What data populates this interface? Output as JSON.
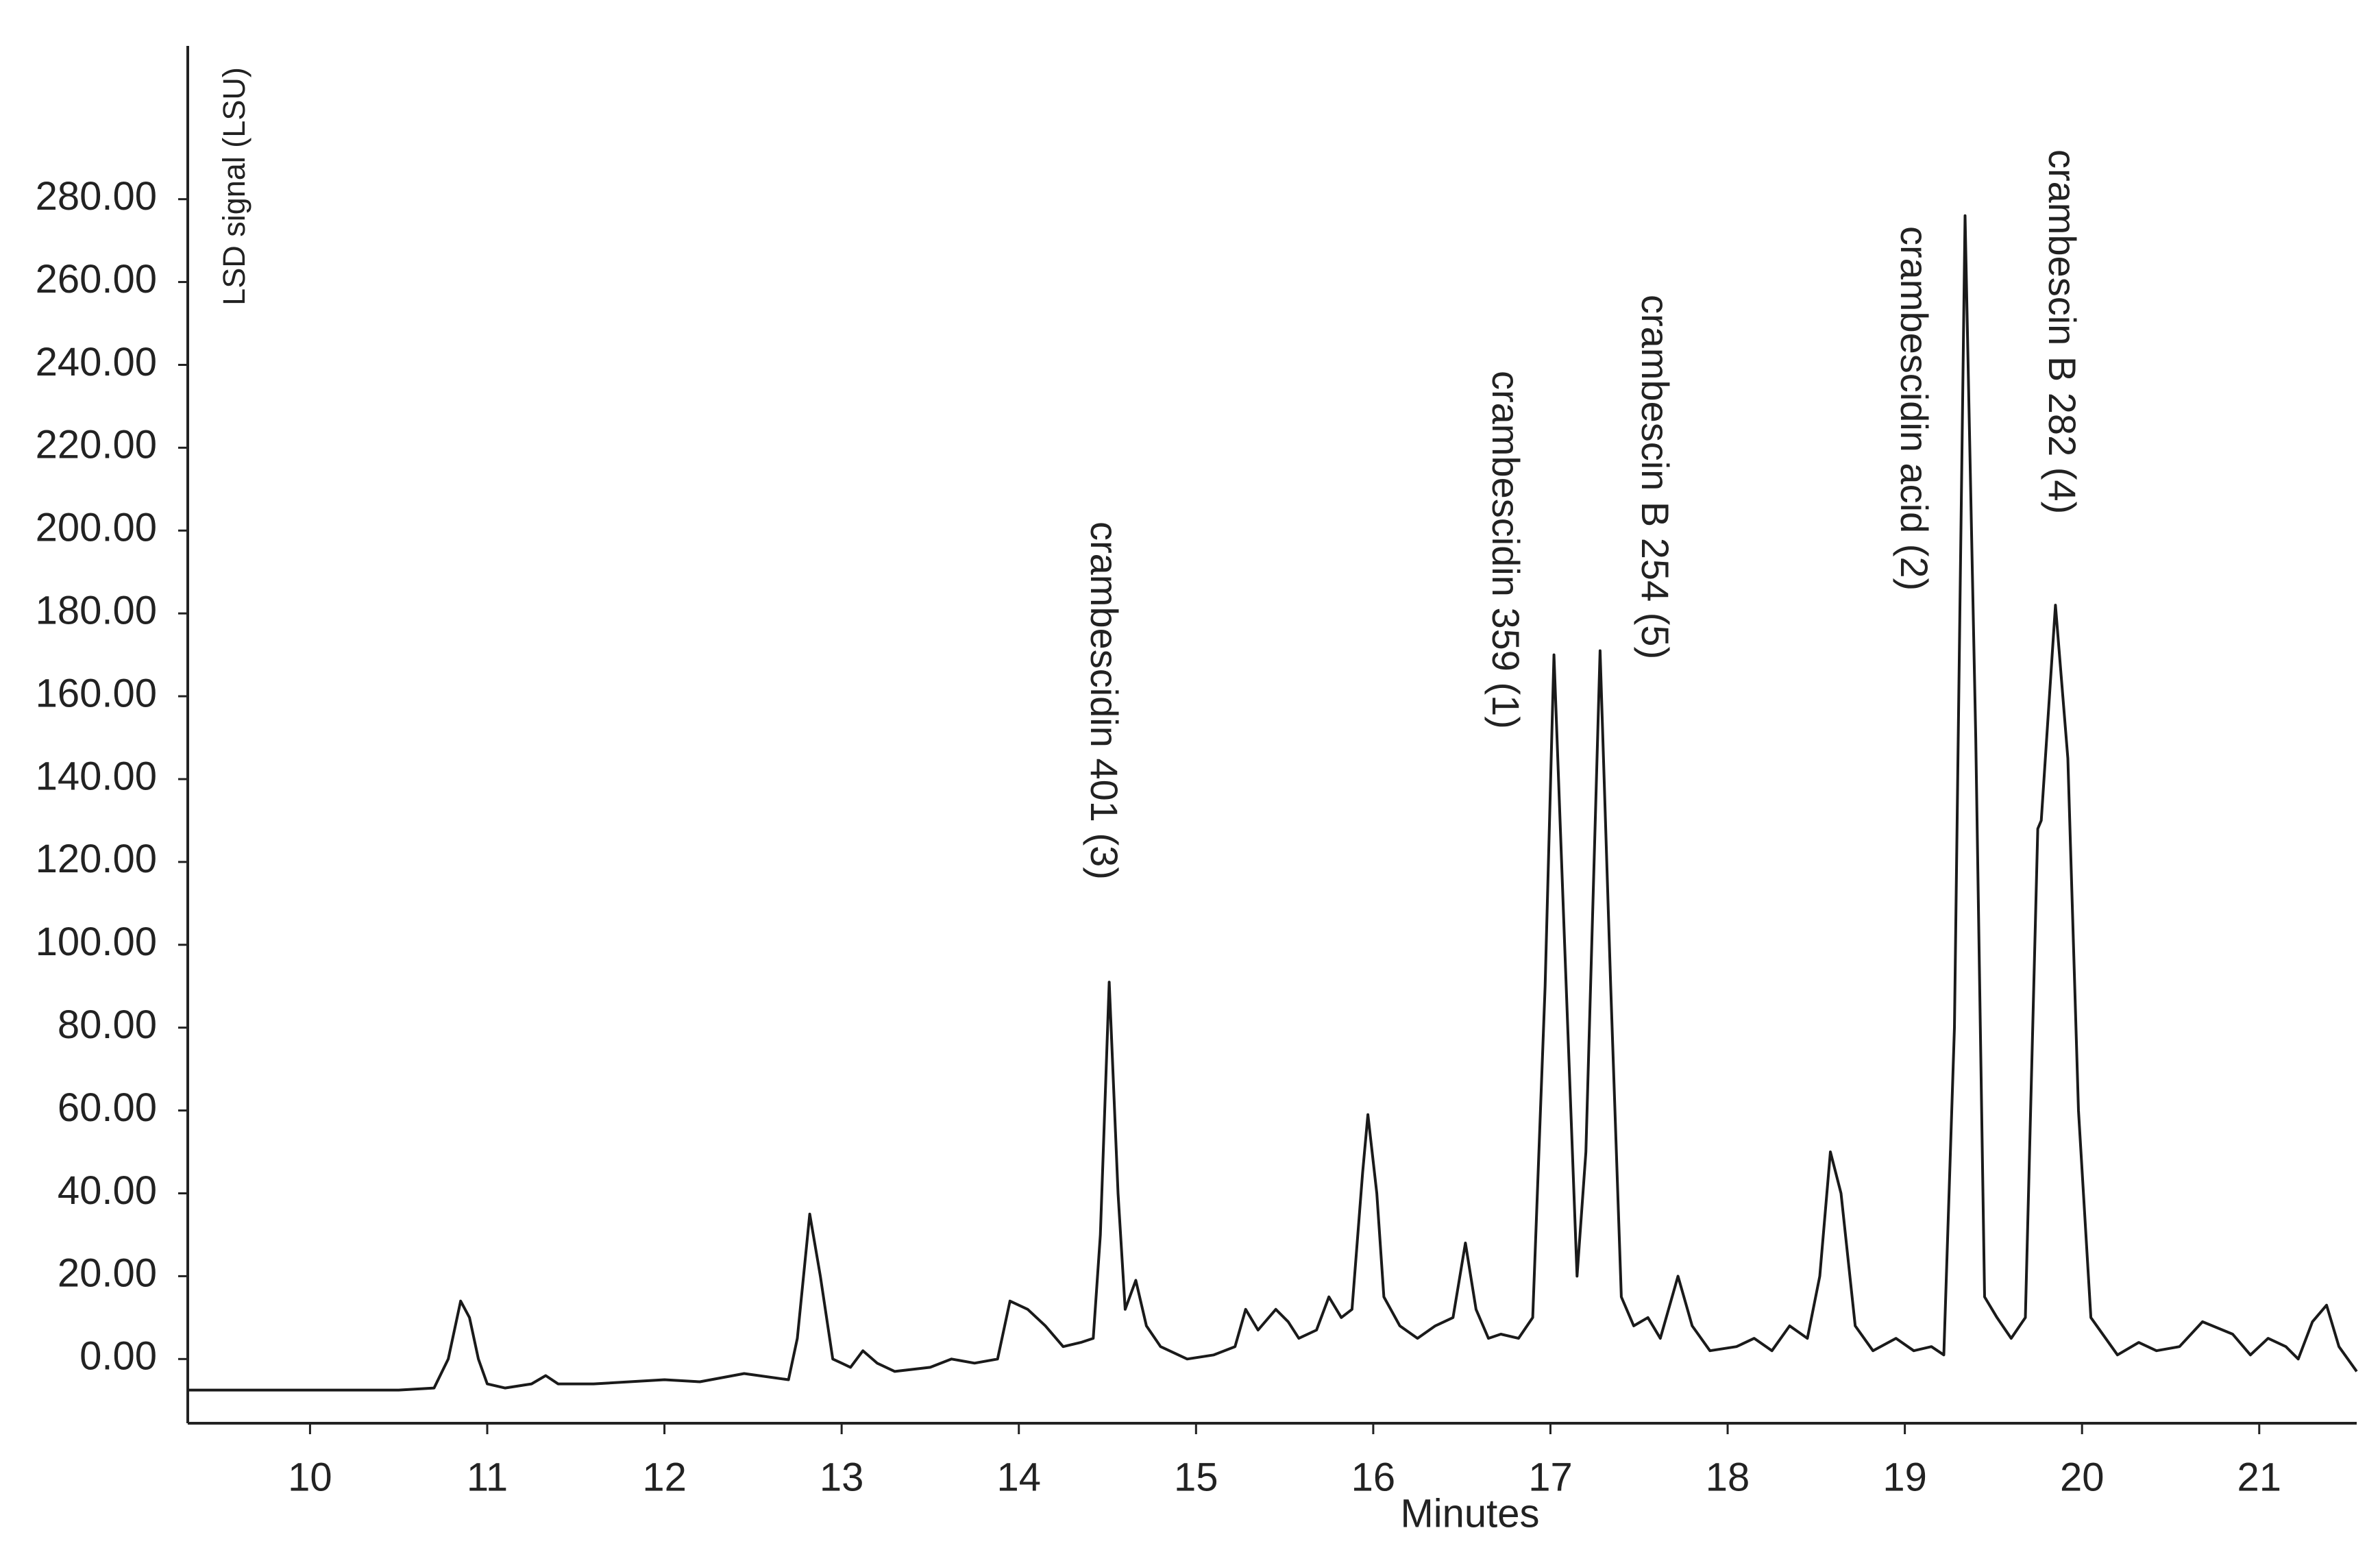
{
  "chart_data": {
    "type": "line",
    "x_label": "Minutes",
    "y_label": "LSD signal (LSU)",
    "xlim": [
      9.31,
      21.55
    ],
    "ylim": [
      -15.5,
      317
    ],
    "xticks": [
      10,
      11,
      12,
      13,
      14,
      15,
      16,
      17,
      18,
      19,
      20,
      21
    ],
    "yticks": [
      {
        "value": 0,
        "label": "0.00"
      },
      {
        "value": 20,
        "label": "20.00"
      },
      {
        "value": 40,
        "label": "40.00"
      },
      {
        "value": 60,
        "label": "60.00"
      },
      {
        "value": 80,
        "label": "80.00"
      },
      {
        "value": 100,
        "label": "100.00"
      },
      {
        "value": 120,
        "label": "120.00"
      },
      {
        "value": 140,
        "label": "140.00"
      },
      {
        "value": 160,
        "label": "160.00"
      },
      {
        "value": 180,
        "label": "180.00"
      },
      {
        "value": 200,
        "label": "200.00"
      },
      {
        "value": 220,
        "label": "220.00"
      },
      {
        "value": 240,
        "label": "240.00"
      },
      {
        "value": 260,
        "label": "260.00"
      },
      {
        "value": 280,
        "label": "280.00"
      }
    ],
    "annotations": [
      "crambescidin 401 (3)",
      "crambescidin 359 (1)",
      "crambescin B 254 (5)",
      "crambescidin acid (2)",
      "crambescin B 282 (4)"
    ],
    "series": [
      {
        "color": "#1a1a1a",
        "x": [
          9.31,
          10.5,
          10.7,
          10.78,
          10.85,
          10.9,
          10.95,
          11.0,
          11.1,
          11.25,
          11.33,
          11.4,
          11.6,
          12.0,
          12.2,
          12.45,
          12.7,
          12.75,
          12.82,
          12.88,
          12.95,
          13.0,
          13.05,
          13.12,
          13.2,
          13.3,
          13.5,
          13.62,
          13.75,
          13.88,
          13.95,
          14.05,
          14.15,
          14.25,
          14.35,
          14.42,
          14.46,
          14.51,
          14.56,
          14.6,
          14.66,
          14.72,
          14.8,
          14.95,
          15.1,
          15.22,
          15.28,
          15.35,
          15.45,
          15.52,
          15.58,
          15.68,
          15.75,
          15.82,
          15.88,
          15.94,
          15.97,
          16.02,
          16.06,
          16.15,
          16.25,
          16.35,
          16.45,
          16.52,
          16.58,
          16.65,
          16.72,
          16.82,
          16.9,
          16.97,
          17.02,
          17.08,
          17.15,
          17.2,
          17.28,
          17.34,
          17.4,
          17.47,
          17.55,
          17.62,
          17.72,
          17.8,
          17.9,
          18.05,
          18.15,
          18.25,
          18.35,
          18.45,
          18.52,
          18.58,
          18.64,
          18.72,
          18.82,
          18.95,
          19.05,
          19.15,
          19.22,
          19.28,
          19.34,
          19.4,
          19.45,
          19.52,
          19.6,
          19.68,
          19.75,
          19.77,
          19.85,
          19.92,
          19.98,
          20.05,
          20.2,
          20.32,
          20.42,
          20.55,
          20.68,
          20.85,
          20.95,
          21.05,
          21.15,
          21.22,
          21.3,
          21.38,
          21.45,
          21.55
        ],
        "values": [
          -7.5,
          -7.5,
          -7,
          0,
          14,
          10,
          0,
          -6,
          -7,
          -6,
          -4,
          -6,
          -6,
          -5,
          -5.5,
          -3.5,
          -5,
          5,
          35,
          20,
          0,
          -1,
          -2,
          2,
          -1,
          -3,
          -2,
          0,
          -1,
          0,
          14,
          12,
          8,
          3,
          4,
          5,
          30,
          91,
          40,
          12,
          19,
          8,
          3,
          0,
          1,
          3,
          12,
          7,
          12,
          9,
          5,
          7,
          15,
          10,
          12,
          45,
          59,
          40,
          15,
          8,
          5,
          8,
          10,
          28,
          12,
          5,
          6,
          5,
          10,
          90,
          170,
          100,
          20,
          50,
          171,
          90,
          15,
          8,
          10,
          5,
          20,
          8,
          2,
          3,
          5,
          2,
          8,
          5,
          20,
          50,
          40,
          8,
          2,
          5,
          2,
          3,
          1,
          80,
          276,
          150,
          15,
          10,
          5,
          10,
          128,
          130,
          182,
          145,
          60,
          10,
          1,
          4,
          2,
          3,
          9,
          6,
          1,
          5,
          3,
          0,
          9,
          13,
          3,
          -3
        ]
      }
    ]
  }
}
